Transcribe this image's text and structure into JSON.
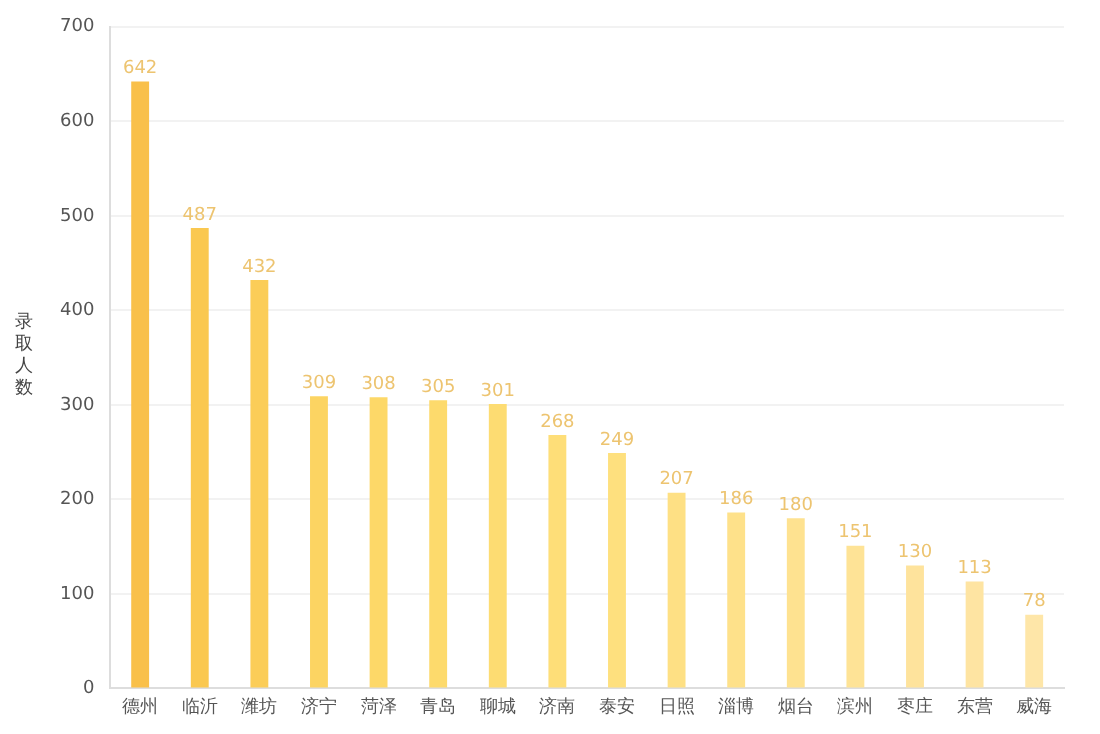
{
  "chart_data": {
    "type": "bar",
    "ylabel": "录取人数",
    "categories": [
      "德州",
      "临沂",
      "潍坊",
      "济宁",
      "菏泽",
      "青岛",
      "聊城",
      "济南",
      "泰安",
      "日照",
      "淄博",
      "烟台",
      "滨州",
      "枣庄",
      "东营",
      "威海"
    ],
    "values": [
      642,
      487,
      432,
      309,
      308,
      305,
      301,
      268,
      249,
      207,
      186,
      180,
      151,
      130,
      113,
      78
    ],
    "colors": [
      "#f9c04a",
      "#fac850",
      "#fbcd58",
      "#fcd462",
      "#fdd868",
      "#fdda6c",
      "#fddc72",
      "#fede78",
      "#fee07e",
      "#fee084",
      "#fee18a",
      "#fee290",
      "#fee396",
      "#fee39c",
      "#fee4a2",
      "#fee6a8"
    ],
    "ylim": [
      0,
      700
    ],
    "yticks": [
      0,
      100,
      200,
      300,
      400,
      500,
      600,
      700
    ],
    "grid": "y",
    "data_labels": true,
    "legend": false
  }
}
